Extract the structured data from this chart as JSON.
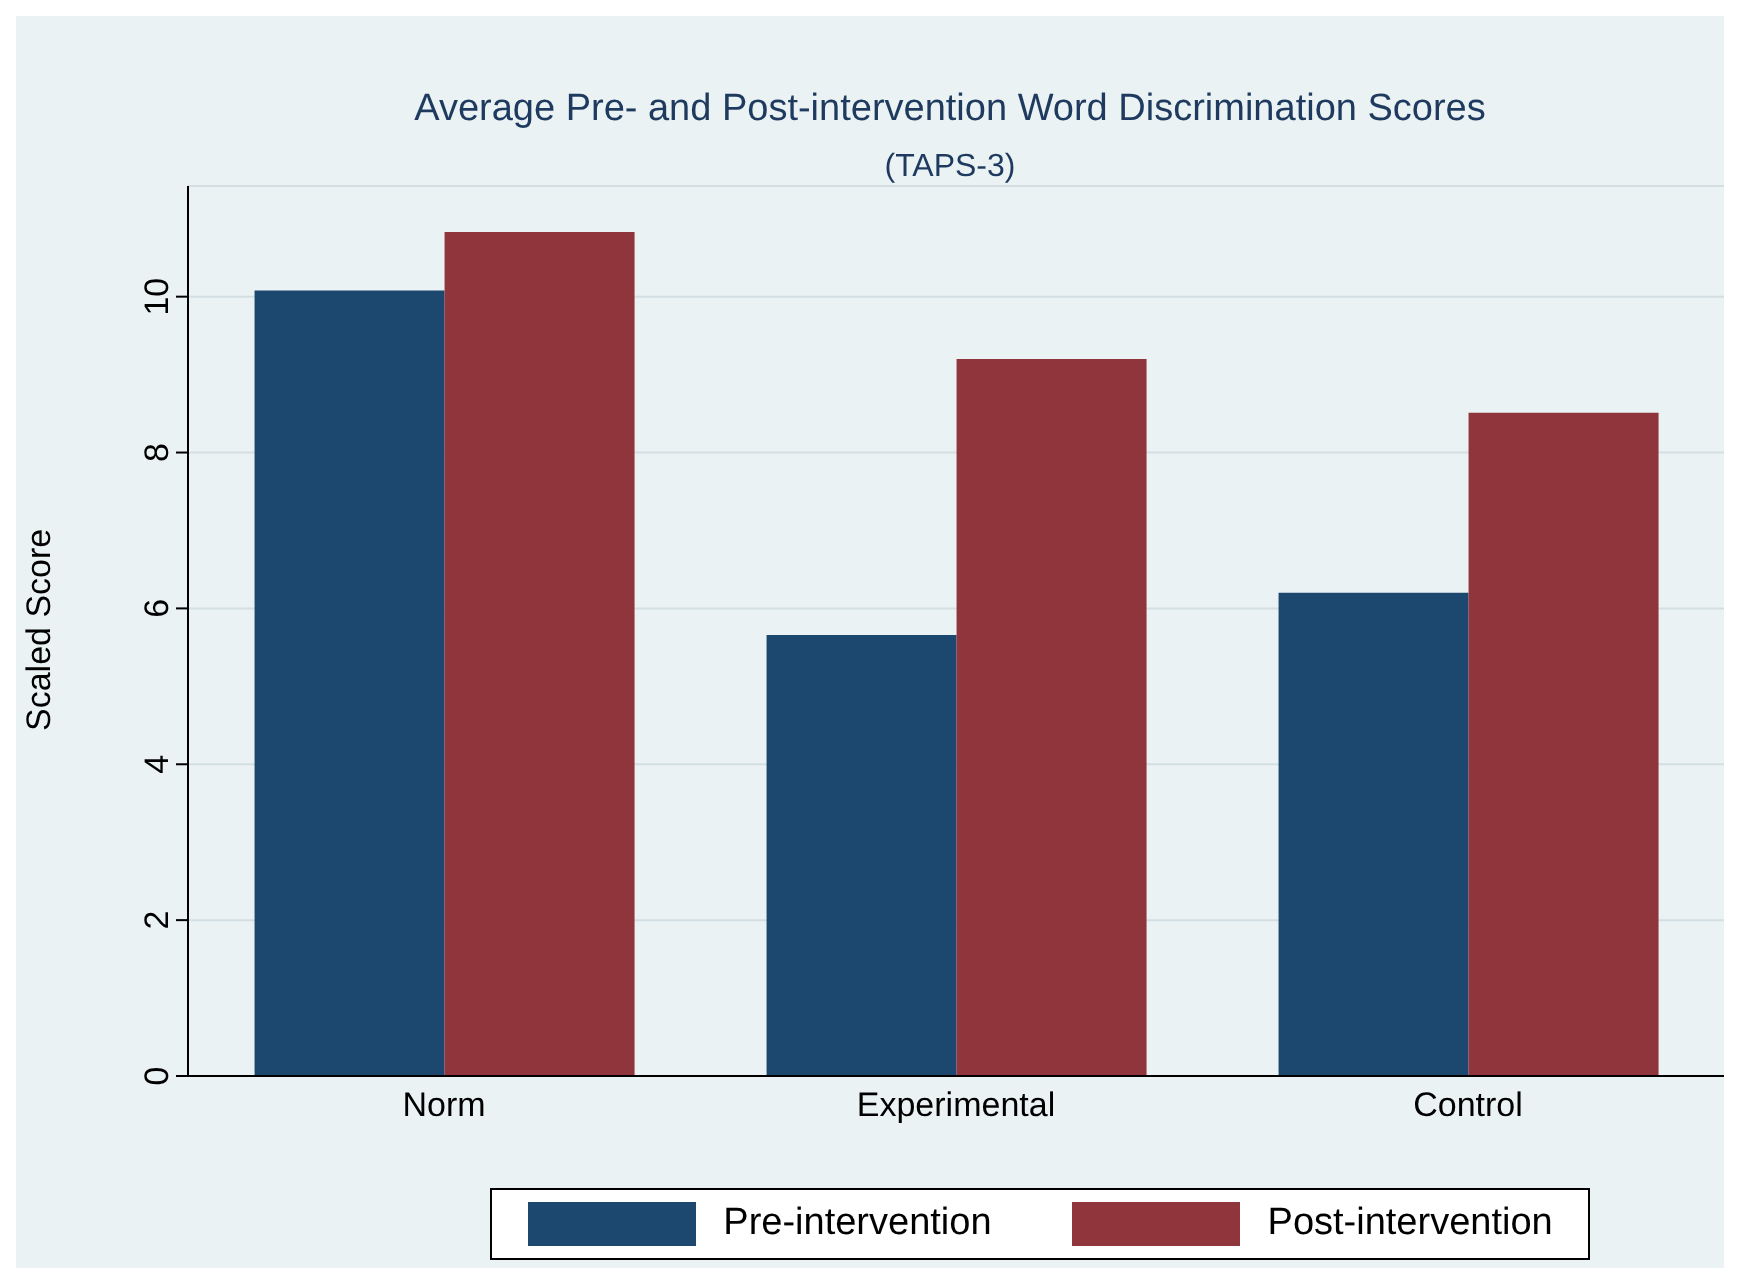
{
  "chart_data": {
    "type": "bar",
    "title": "Average Pre- and Post-intervention Word Discrimination Scores",
    "subtitle": "(TAPS-3)",
    "ylabel": "Scaled Score",
    "categories": [
      "Norm",
      "Experimental",
      "Control"
    ],
    "series": [
      {
        "name": "Pre-intervention",
        "color": "#1c476e",
        "values": [
          10.08,
          5.66,
          6.2
        ]
      },
      {
        "name": "Post-intervention",
        "color": "#90353b",
        "values": [
          10.83,
          9.2,
          8.51
        ]
      }
    ],
    "ylim": [
      0,
      11.42
    ],
    "yticks": [
      0,
      2,
      4,
      6,
      8,
      10
    ],
    "grid": "y",
    "legend": "bottom"
  }
}
